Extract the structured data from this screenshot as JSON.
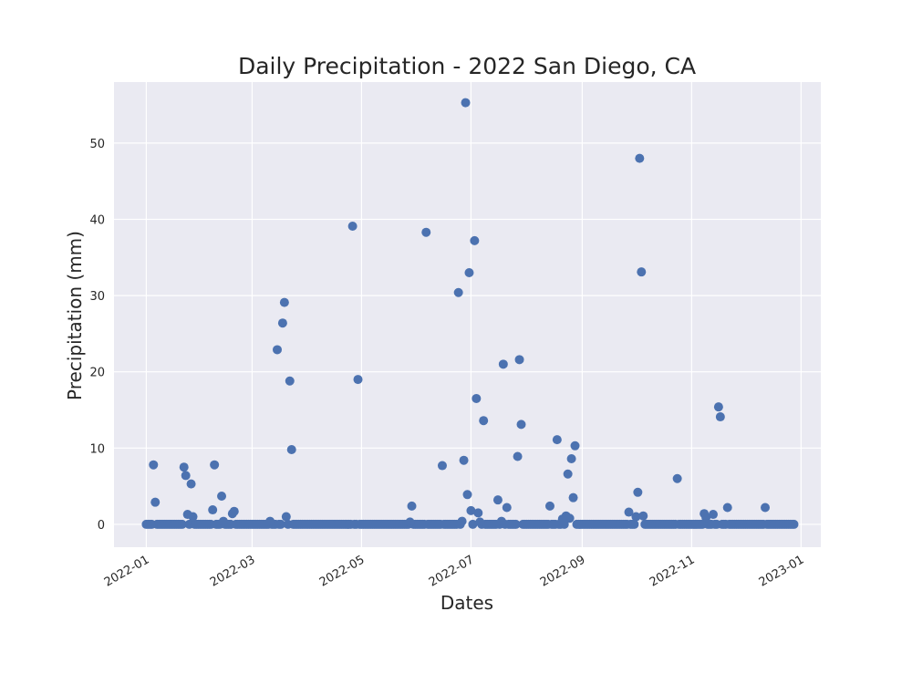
{
  "chart_data": {
    "type": "scatter",
    "title": "Daily Precipitation - 2022 San Diego, CA",
    "xlabel": "Dates",
    "ylabel": "Precipitation (mm)",
    "xlim": [
      "2021-12-14",
      "2023-01-12"
    ],
    "ylim": [
      -3,
      58
    ],
    "x_ticks": [
      "2022-01",
      "2022-03",
      "2022-05",
      "2022-07",
      "2022-09",
      "2022-11",
      "2023-01"
    ],
    "y_ticks": [
      0,
      10,
      20,
      30,
      40,
      50
    ],
    "grid": true,
    "colors": {
      "marker": "#4c72b0",
      "plot_bg": "#eaeaf2",
      "grid": "#ffffff",
      "text": "#262626"
    },
    "series": [
      {
        "zero_days": {
          "start": "2022-01-01",
          "end": "2022-12-28",
          "value": 0
        },
        "points": [
          {
            "x": "2022-01-05",
            "y": 7.8
          },
          {
            "x": "2022-01-06",
            "y": 2.9
          },
          {
            "x": "2022-01-22",
            "y": 7.5
          },
          {
            "x": "2022-01-23",
            "y": 6.4
          },
          {
            "x": "2022-01-24",
            "y": 1.3
          },
          {
            "x": "2022-01-26",
            "y": 5.3
          },
          {
            "x": "2022-01-27",
            "y": 1.0
          },
          {
            "x": "2022-02-07",
            "y": 1.9
          },
          {
            "x": "2022-02-08",
            "y": 7.8
          },
          {
            "x": "2022-02-12",
            "y": 3.7
          },
          {
            "x": "2022-02-13",
            "y": 0.4
          },
          {
            "x": "2022-02-18",
            "y": 1.4
          },
          {
            "x": "2022-02-19",
            "y": 1.7
          },
          {
            "x": "2022-03-11",
            "y": 0.4
          },
          {
            "x": "2022-03-15",
            "y": 22.9
          },
          {
            "x": "2022-03-18",
            "y": 26.4
          },
          {
            "x": "2022-03-19",
            "y": 29.1
          },
          {
            "x": "2022-03-20",
            "y": 1.0
          },
          {
            "x": "2022-03-22",
            "y": 18.8
          },
          {
            "x": "2022-03-23",
            "y": 9.8
          },
          {
            "x": "2022-04-26",
            "y": 39.1
          },
          {
            "x": "2022-04-29",
            "y": 19.0
          },
          {
            "x": "2022-05-28",
            "y": 0.3
          },
          {
            "x": "2022-05-29",
            "y": 2.4
          },
          {
            "x": "2022-06-06",
            "y": 38.3
          },
          {
            "x": "2022-06-15",
            "y": 7.7
          },
          {
            "x": "2022-06-24",
            "y": 30.4
          },
          {
            "x": "2022-06-26",
            "y": 0.4
          },
          {
            "x": "2022-06-27",
            "y": 8.4
          },
          {
            "x": "2022-06-28",
            "y": 55.3
          },
          {
            "x": "2022-06-29",
            "y": 3.9
          },
          {
            "x": "2022-06-30",
            "y": 33.0
          },
          {
            "x": "2022-07-01",
            "y": 1.8
          },
          {
            "x": "2022-07-03",
            "y": 37.2
          },
          {
            "x": "2022-07-04",
            "y": 16.5
          },
          {
            "x": "2022-07-05",
            "y": 1.5
          },
          {
            "x": "2022-07-06",
            "y": 0.3
          },
          {
            "x": "2022-07-08",
            "y": 13.6
          },
          {
            "x": "2022-07-16",
            "y": 3.2
          },
          {
            "x": "2022-07-18",
            "y": 0.4
          },
          {
            "x": "2022-07-19",
            "y": 21.0
          },
          {
            "x": "2022-07-21",
            "y": 2.2
          },
          {
            "x": "2022-07-27",
            "y": 8.9
          },
          {
            "x": "2022-07-28",
            "y": 21.6
          },
          {
            "x": "2022-07-29",
            "y": 13.1
          },
          {
            "x": "2022-08-14",
            "y": 2.4
          },
          {
            "x": "2022-08-18",
            "y": 11.1
          },
          {
            "x": "2022-08-21",
            "y": 0.7
          },
          {
            "x": "2022-08-23",
            "y": 1.1
          },
          {
            "x": "2022-08-24",
            "y": 6.6
          },
          {
            "x": "2022-08-25",
            "y": 0.8
          },
          {
            "x": "2022-08-26",
            "y": 8.6
          },
          {
            "x": "2022-08-27",
            "y": 3.5
          },
          {
            "x": "2022-08-28",
            "y": 10.3
          },
          {
            "x": "2022-09-27",
            "y": 1.6
          },
          {
            "x": "2022-10-01",
            "y": 1.0
          },
          {
            "x": "2022-10-02",
            "y": 4.2
          },
          {
            "x": "2022-10-03",
            "y": 48.0
          },
          {
            "x": "2022-10-04",
            "y": 33.1
          },
          {
            "x": "2022-10-05",
            "y": 1.1
          },
          {
            "x": "2022-10-24",
            "y": 6.0
          },
          {
            "x": "2022-11-08",
            "y": 1.4
          },
          {
            "x": "2022-11-09",
            "y": 0.9
          },
          {
            "x": "2022-11-13",
            "y": 1.3
          },
          {
            "x": "2022-11-16",
            "y": 15.4
          },
          {
            "x": "2022-11-17",
            "y": 14.1
          },
          {
            "x": "2022-11-21",
            "y": 2.2
          },
          {
            "x": "2022-12-12",
            "y": 2.2
          }
        ]
      }
    ]
  }
}
